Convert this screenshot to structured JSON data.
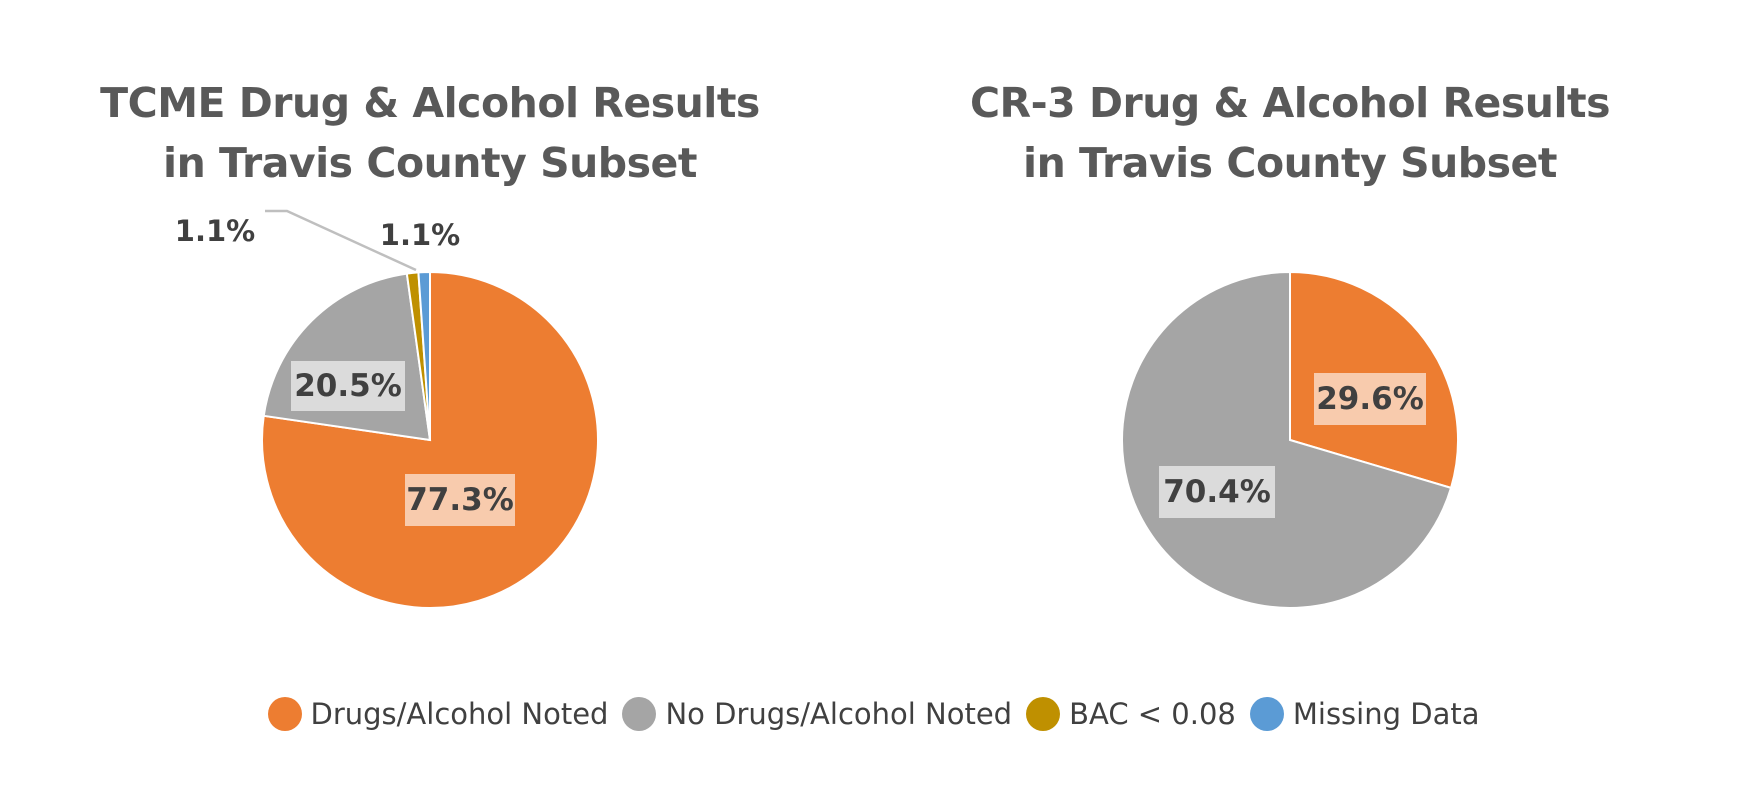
{
  "colors": {
    "Drugs/Alcohol Noted": "#ED7D31",
    "No Drugs/Alcohol Noted": "#A5A5A5",
    "BAC < 0.08": "#BF9000",
    "Missing Data": "#5B9BD5"
  },
  "legend": [
    {
      "label": "Drugs/Alcohol Noted",
      "color": "#ED7D31"
    },
    {
      "label": "No Drugs/Alcohol Noted",
      "color": "#A5A5A5"
    },
    {
      "label": "BAC < 0.08",
      "color": "#BF9000"
    },
    {
      "label": "Missing Data",
      "color": "#5B9BD5"
    }
  ],
  "chart_data": [
    {
      "type": "pie",
      "title_lines": [
        "TCME Drug & Alcohol Results",
        "in Travis County Subset"
      ],
      "categories": [
        "Drugs/Alcohol Noted",
        "No Drugs/Alcohol Noted",
        "BAC < 0.08",
        "Missing Data"
      ],
      "values": [
        77.3,
        20.5,
        1.1,
        1.1
      ],
      "data_labels": [
        "77.3%",
        "20.5%",
        "1.1%",
        "1.1%"
      ],
      "legend_position": "bottom"
    },
    {
      "type": "pie",
      "title_lines": [
        "CR-3 Drug & Alcohol Results",
        "in Travis County Subset"
      ],
      "categories": [
        "Drugs/Alcohol Noted",
        "No Drugs/Alcohol Noted"
      ],
      "values": [
        29.6,
        70.4
      ],
      "data_labels": [
        "29.6%",
        "70.4%"
      ],
      "legend_position": "bottom"
    }
  ]
}
